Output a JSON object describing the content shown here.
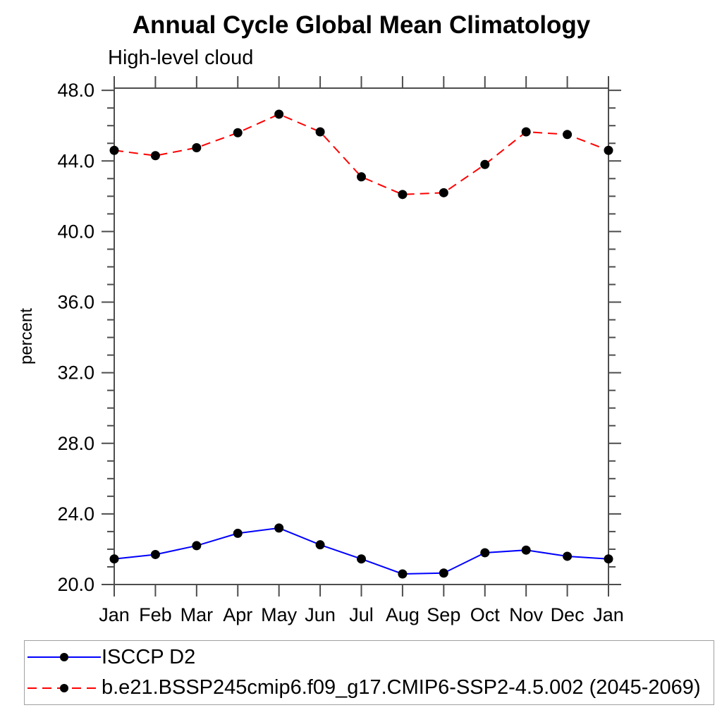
{
  "page": {
    "background": "#ffffff",
    "text_color": "#000000",
    "axis_color": "#4d4d4d"
  },
  "chart": {
    "title": "Annual Cycle Global Mean Climatology",
    "subtitle": "High-level cloud",
    "ylabel": "percent"
  },
  "chart_data": {
    "type": "line",
    "categories": [
      "Jan",
      "Feb",
      "Mar",
      "Apr",
      "May",
      "Jun",
      "Jul",
      "Aug",
      "Sep",
      "Oct",
      "Nov",
      "Dec",
      "Jan"
    ],
    "series": [
      {
        "name": "ISCCP D2",
        "color": "#0000ff",
        "line_style": "solid",
        "marker": "filled-circle",
        "values": [
          21.45,
          21.7,
          22.2,
          22.9,
          23.2,
          22.25,
          21.45,
          20.6,
          20.65,
          21.8,
          21.95,
          21.6,
          21.45
        ]
      },
      {
        "name": "b.e21.BSSP245cmip6.f09_g17.CMIP6-SSP2-4.5.002 (2045-2069)",
        "color": "#ff0000",
        "line_style": "dashed",
        "marker": "filled-circle",
        "values": [
          44.6,
          44.3,
          44.75,
          45.6,
          46.65,
          45.65,
          43.1,
          42.1,
          42.2,
          43.8,
          45.65,
          45.5,
          44.6
        ]
      }
    ],
    "marker_color": "#000000",
    "xlabel": "",
    "ylabel": "percent",
    "ylim": [
      20.0,
      48.1
    ],
    "yticks_major": [
      20,
      24,
      28,
      32,
      36,
      40,
      44,
      48
    ],
    "ytick_labels": [
      "20.0",
      "24.0",
      "28.0",
      "32.0",
      "36.0",
      "40.0",
      "44.0",
      "48.0"
    ],
    "ytick_minor_step": 1.0,
    "grid": false,
    "legend_position": "bottom-left"
  }
}
